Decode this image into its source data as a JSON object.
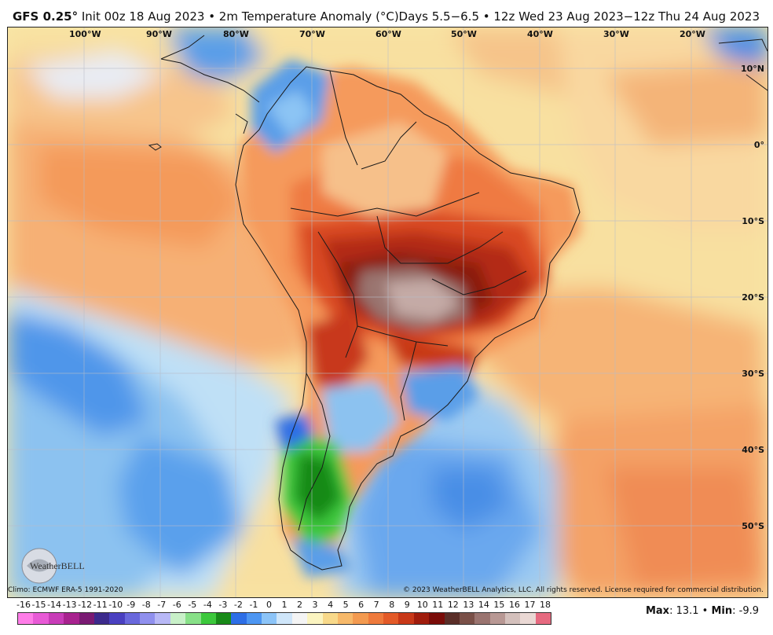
{
  "header": {
    "model": "GFS 0.25",
    "degree": "°",
    "init": " Init 00z 18 Aug 2023 • 2m Temperature Anomaly (°C)",
    "valid": "Days 5.5−6.5 • 12z Wed 23 Aug 2023−12z Thu 24 Aug 2023"
  },
  "map": {
    "longitude_labels": [
      "100°W",
      "90°W",
      "80°W",
      "70°W",
      "60°W",
      "50°W",
      "40°W",
      "30°W",
      "20°W"
    ],
    "latitude_labels": [
      "10°N",
      "0°",
      "10°S",
      "20°S",
      "30°S",
      "40°S",
      "50°S"
    ],
    "background_color": "#f8e6a6",
    "logo_text": "WeatherBELL"
  },
  "footer": {
    "climo": "Climo: ECMWF ERA-5 1991-2020",
    "copyright": "© 2023 WeatherBELL Analytics, LLC. All rights reserved. License required for commercial distribution."
  },
  "colorbar": {
    "labels": [
      "-16",
      "-15",
      "-14",
      "-13",
      "-12",
      "-11",
      "-10",
      "-9",
      "-8",
      "-7",
      "-6",
      "-5",
      "-4",
      "-3",
      "-2",
      "-1",
      "0",
      "1",
      "2",
      "3",
      "4",
      "5",
      "6",
      "7",
      "8",
      "9",
      "10",
      "11",
      "12",
      "13",
      "14",
      "15",
      "16",
      "17",
      "18"
    ],
    "colors": [
      "#ff7de8",
      "#e85ad6",
      "#c83cb8",
      "#a8228f",
      "#7a1a73",
      "#3c2a8c",
      "#4a40c0",
      "#6a68dc",
      "#9090ee",
      "#b8b8f6",
      "#c8f0c8",
      "#88e088",
      "#3cc83c",
      "#188a18",
      "#2d6ee6",
      "#4d96f2",
      "#8cc4f8",
      "#cfe6fa",
      "#f4f4f4",
      "#fbf4c0",
      "#f8d98a",
      "#f7b96a",
      "#f39a50",
      "#ee7a3c",
      "#e35a28",
      "#c83818",
      "#a01c0c",
      "#7a0c08",
      "#5a2e28",
      "#7a5048",
      "#9a7470",
      "#b89894",
      "#d4c0bc",
      "#ead8d4",
      "#e66a80"
    ]
  },
  "stats": {
    "max_label": "Max",
    "max_value": ": 13.1 • ",
    "min_label": "Min",
    "min_value": ": -9.9"
  }
}
